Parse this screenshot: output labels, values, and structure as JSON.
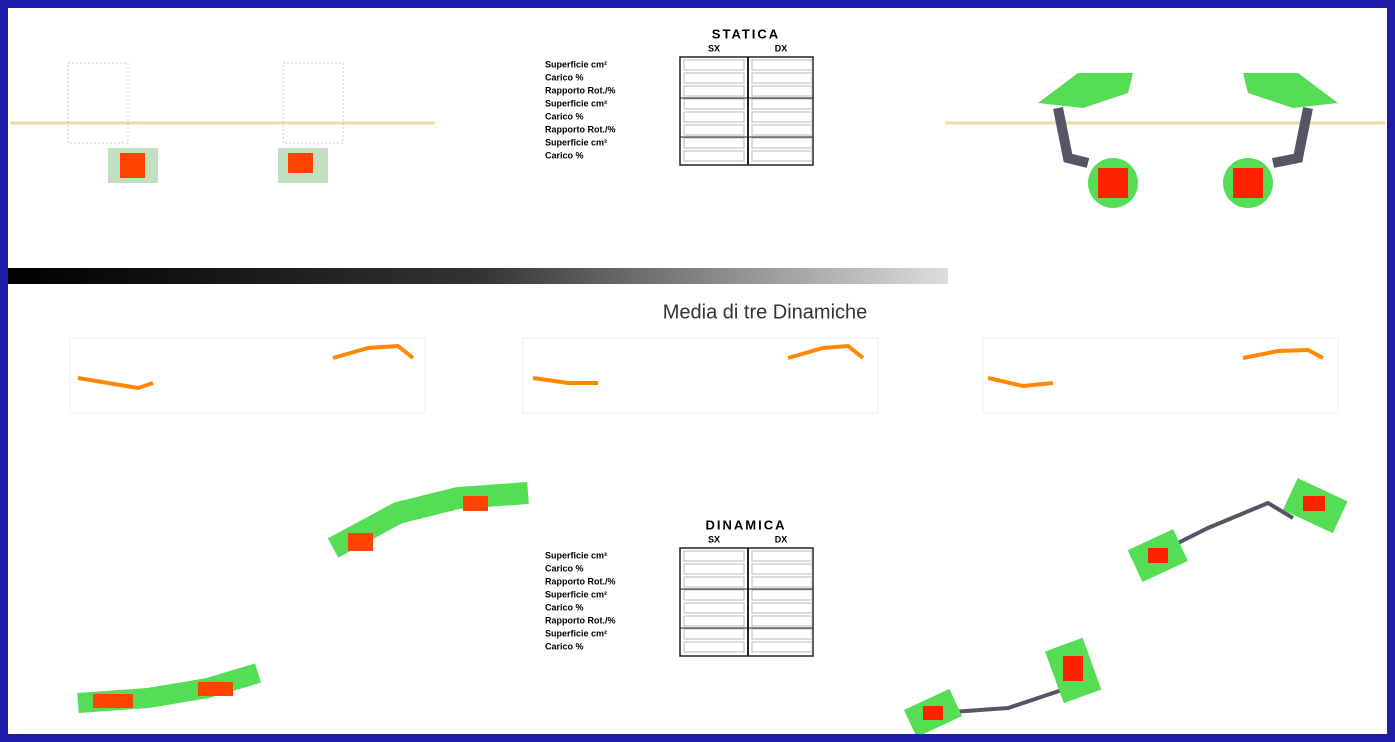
{
  "static": {
    "title": "STATICA",
    "columns": [
      "SX",
      "DX"
    ],
    "rows": [
      "Superficie cm²",
      "Carico %",
      "Rapporto Rot./%",
      "Superficie cm²",
      "Carico %",
      "Rapporto Rot./%",
      "Superficie cm²",
      "Carico %"
    ]
  },
  "dynamics_title": "Media di tre Dinamiche",
  "dynamic": {
    "title": "DINAMICA",
    "columns": [
      "SX",
      "DX"
    ],
    "rows": [
      "Superficie cm²",
      "Carico %",
      "Rapporto Rot./%",
      "Superficie cm²",
      "Carico %",
      "Rapporto Rot./%",
      "Superficie cm²",
      "Carico %"
    ]
  }
}
